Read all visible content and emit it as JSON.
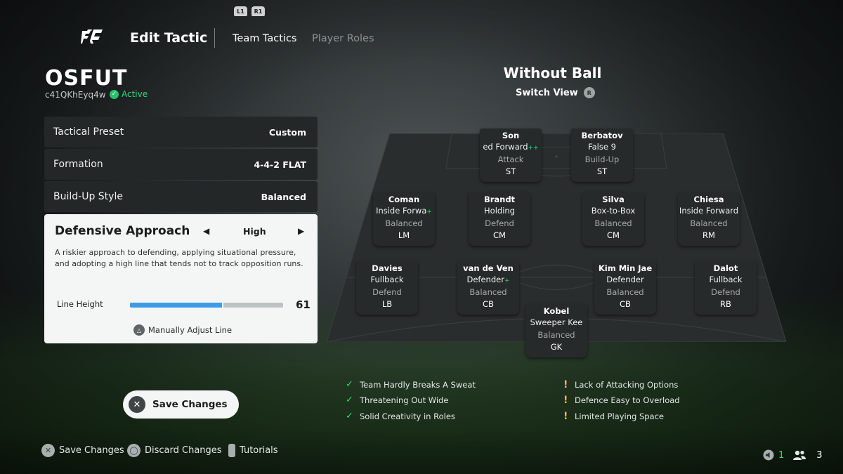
{
  "nav": {
    "bumper_left": "L1",
    "bumper_right": "R1",
    "title": "Edit Tactic",
    "tabs": [
      {
        "label": "Team Tactics"
      },
      {
        "label": "Player Roles"
      }
    ]
  },
  "team": {
    "name": "OSFUT",
    "code": "c41QKhEyq4w",
    "status": "Active"
  },
  "settings": [
    {
      "label": "Tactical Preset",
      "value": "Custom"
    },
    {
      "label": "Formation",
      "value": "4-4-2 FLAT"
    },
    {
      "label": "Build-Up Style",
      "value": "Balanced"
    }
  ],
  "defensive": {
    "title": "Defensive Approach",
    "value": "High",
    "description": "A riskier approach to defending, applying situational pressure, and adopting a high line that tends not to track opposition runs.",
    "line_height_label": "Line Height",
    "line_height_value": "61",
    "line_height_fraction": 0.61,
    "manual_label": "Manually Adjust Line",
    "accent": "#3d9be8"
  },
  "save_button": "Save Changes",
  "footer": [
    {
      "label": "Save Changes",
      "icon": "cross-button-icon"
    },
    {
      "label": "Discard Changes",
      "icon": "circle-button-icon"
    },
    {
      "label": "Tutorials",
      "icon": "touchpad-icon"
    }
  ],
  "counts": {
    "first": "1",
    "second": "3"
  },
  "pitch": {
    "title": "Without Ball",
    "switch_view": "Switch View",
    "switch_button": "R"
  },
  "players": [
    {
      "name": "Son",
      "role": "ed Forward",
      "plus": "++",
      "focus": "Attack",
      "pos": "ST"
    },
    {
      "name": "Berbatov",
      "role": "False 9",
      "plus": "",
      "focus": "Build-Up",
      "pos": "ST"
    },
    {
      "name": "Coman",
      "role": "Inside Forwa",
      "plus": "+",
      "focus": "Balanced",
      "pos": "LM"
    },
    {
      "name": "Brandt",
      "role": "Holding",
      "plus": "",
      "focus": "Defend",
      "pos": "CM"
    },
    {
      "name": "Silva",
      "role": "Box-to-Box",
      "plus": "",
      "focus": "Balanced",
      "pos": "CM"
    },
    {
      "name": "Chiesa",
      "role": "Inside Forward",
      "plus": "",
      "focus": "Balanced",
      "pos": "RM"
    },
    {
      "name": "Davies",
      "role": "Fullback",
      "plus": "",
      "focus": "Defend",
      "pos": "LB"
    },
    {
      "name": "van de Ven",
      "role": "Defender",
      "plus": "+",
      "focus": "Balanced",
      "pos": "CB"
    },
    {
      "name": "Kim Min Jae",
      "role": "Defender",
      "plus": "",
      "focus": "Balanced",
      "pos": "CB"
    },
    {
      "name": "Dalot",
      "role": "Fullback",
      "plus": "",
      "focus": "Defend",
      "pos": "RB"
    },
    {
      "name": "Kobel",
      "role": "Sweeper Kee",
      "plus": "",
      "focus": "Balanced",
      "pos": "GK"
    }
  ],
  "feedback": {
    "positive": [
      "Team Hardly Breaks A Sweat",
      "Threatening Out Wide",
      "Solid Creativity in Roles"
    ],
    "negative": [
      "Lack of Attacking Options",
      "Defence Easy to Overload",
      "Limited Playing Space"
    ],
    "positive_color": "#2bd97a",
    "negative_color": "#f2c230"
  }
}
